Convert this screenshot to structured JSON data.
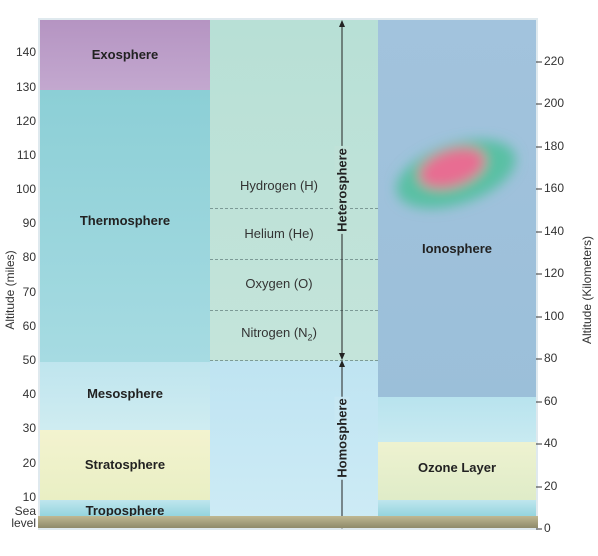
{
  "left_axis": {
    "title": "Altitude (miles)",
    "ticks": [
      "140",
      "130",
      "120",
      "110",
      "100",
      "90",
      "80",
      "70",
      "60",
      "50",
      "40",
      "30",
      "20",
      "10"
    ],
    "sea_level_line1": "Sea",
    "sea_level_line2": "level"
  },
  "right_axis": {
    "title": "Altitude (Kilometers)",
    "ticks": [
      "220",
      "200",
      "180",
      "160",
      "140",
      "120",
      "100",
      "80",
      "60",
      "40",
      "20",
      "0"
    ]
  },
  "layers": {
    "exosphere": "Exosphere",
    "thermosphere": "Thermosphere",
    "mesosphere": "Mesosphere",
    "stratosphere": "Stratosphere",
    "troposphere": "Troposphere"
  },
  "gases": {
    "hydrogen": "Hydrogen (H)",
    "helium": "Helium (He)",
    "oxygen": "Oxygen (O)",
    "nitrogen_prefix": "Nitrogen (N",
    "nitrogen_sub": "2",
    "nitrogen_suffix": ")"
  },
  "spheres": {
    "heterosphere": "Heterosphere",
    "homosphere": "Homosphere"
  },
  "right_regions": {
    "ionosphere": "Ionosphere",
    "ozone": "Ozone Layer"
  },
  "colors": {
    "exosphere": "#b89cc4",
    "thermosphere": "#8fd0d6",
    "mesosphere": "#b8e2ea",
    "stratosphere": "#eef1c8",
    "troposphere": "#a6dde6",
    "heterosphere": "#bfe2d6",
    "homosphere": "#c6e8f2",
    "ionosphere": "#9fc2dc",
    "ozone": "#e6efcb"
  }
}
